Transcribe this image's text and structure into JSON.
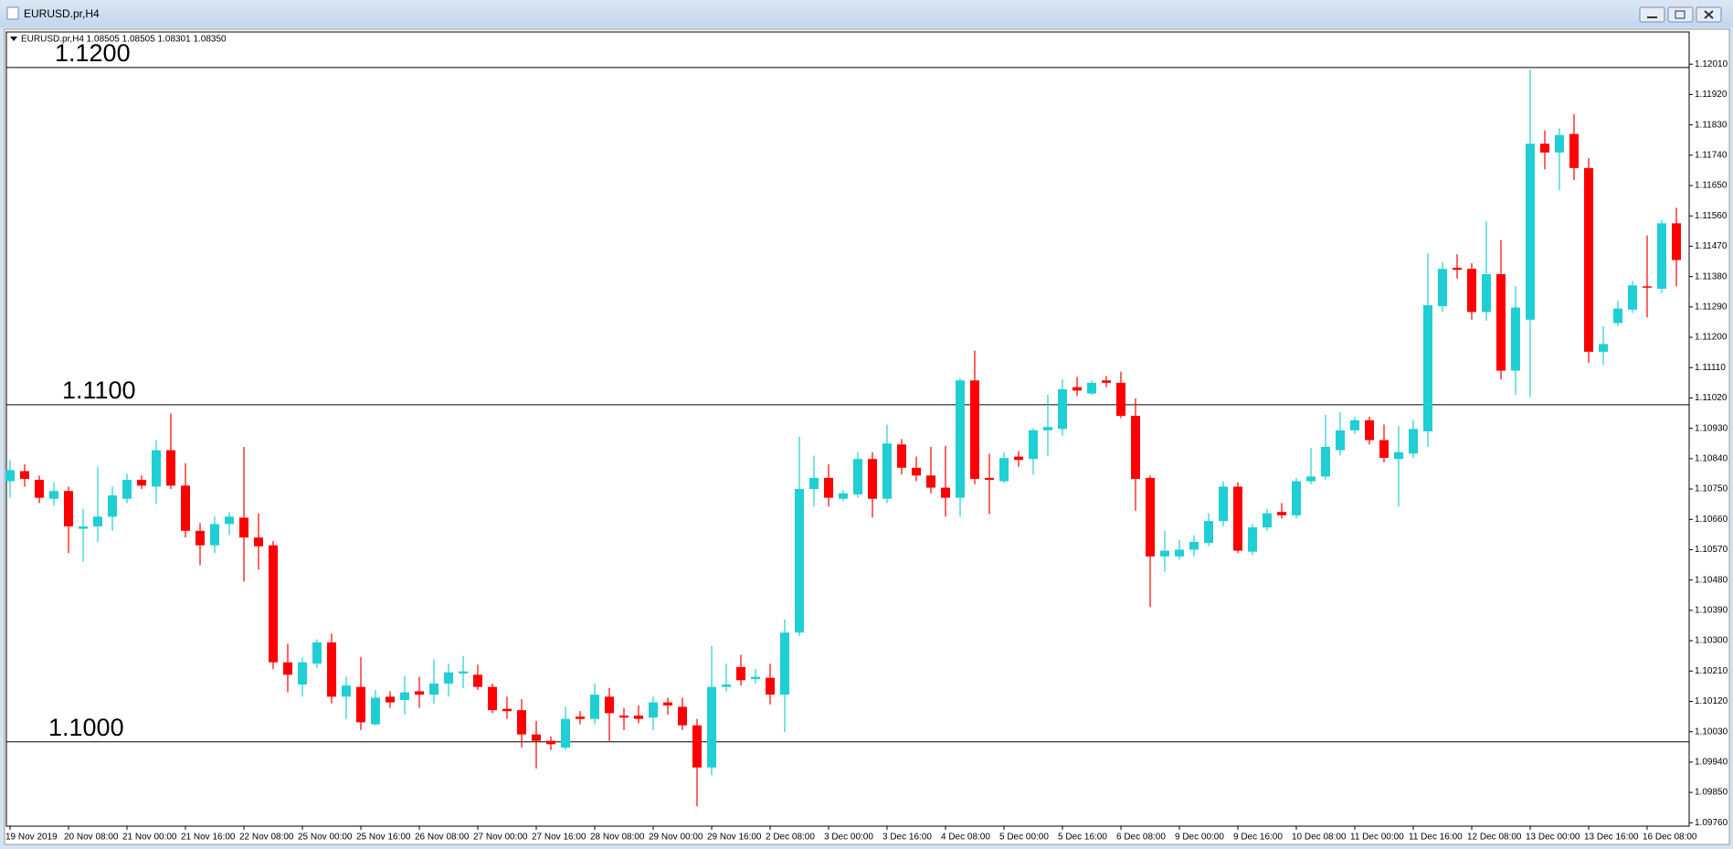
{
  "window": {
    "title": "EURUSD.pr,H4"
  },
  "chart_data": {
    "type": "candlestick",
    "header": "EURUSD.pr,H4  1.08505 1.08505 1.08301 1.08350",
    "up_color": "#1fcfd4",
    "down_color": "#ff0000",
    "categories": [
      "19 Nov 2019",
      null,
      null,
      null,
      "20 Nov 08:00",
      null,
      null,
      null,
      "21 Nov 00:00",
      null,
      null,
      null,
      "21 Nov 16:00",
      null,
      null,
      null,
      "22 Nov 08:00",
      null,
      null,
      null,
      "25 Nov 00:00",
      null,
      null,
      null,
      "25 Nov 16:00",
      null,
      null,
      null,
      "26 Nov 08:00",
      null,
      null,
      null,
      "27 Nov 00:00",
      null,
      null,
      null,
      "27 Nov 16:00",
      null,
      null,
      null,
      "28 Nov 08:00",
      null,
      null,
      null,
      "29 Nov 00:00",
      null,
      null,
      null,
      "29 Nov 16:00",
      null,
      null,
      null,
      "2 Dec 08:00",
      null,
      null,
      null,
      "3 Dec 00:00",
      null,
      null,
      null,
      "3 Dec 16:00",
      null,
      null,
      null,
      "4 Dec 08:00",
      null,
      null,
      null,
      "5 Dec 00:00",
      null,
      null,
      null,
      "5 Dec 16:00",
      null,
      null,
      null,
      "6 Dec 08:00",
      null,
      null,
      null,
      "9 Dec 00:00",
      null,
      null,
      null,
      "9 Dec 16:00",
      null,
      null,
      null,
      "10 Dec 08:00",
      null,
      null,
      null,
      "11 Dec 00:00",
      null,
      null,
      null,
      "11 Dec 16:00",
      null,
      null,
      null,
      "12 Dec 08:00",
      null,
      null,
      null,
      "13 Dec 00:00",
      null,
      null,
      null,
      "13 Dec 16:00",
      null,
      null,
      null,
      "16 Dec 08:00",
      null,
      null
    ],
    "open": [
      1.10773,
      1.10803,
      1.10777,
      1.10721,
      1.10744,
      1.10632,
      1.10639,
      1.10668,
      1.10721,
      1.10777,
      1.10757,
      1.10865,
      1.1076,
      1.10626,
      1.10583,
      1.10646,
      1.10665,
      1.10606,
      1.10583,
      1.10236,
      1.1017,
      1.10232,
      1.10295,
      1.10134,
      1.10163,
      1.10052,
      1.10134,
      1.10124,
      1.1015,
      1.1014,
      1.10173,
      1.10203,
      1.10199,
      1.10163,
      1.10098,
      1.10094,
      1.10022,
      1.10003,
      1.09983,
      1.10075,
      1.10068,
      1.10134,
      1.10078,
      1.10078,
      1.10072,
      1.10117,
      1.10104,
      1.10049,
      1.09924,
      1.10163,
      1.10222,
      1.10186,
      1.1019,
      1.1014,
      1.10324,
      1.1075,
      1.10783,
      1.10721,
      1.10734,
      1.10839,
      1.10721,
      1.10882,
      1.10813,
      1.1079,
      1.10754,
      1.10724,
      1.11072,
      1.10783,
      1.10773,
      1.10846,
      1.10839,
      1.10924,
      1.10928,
      1.11052,
      1.11033,
      1.11072,
      1.11065,
      1.10967,
      1.10783,
      1.1055,
      1.1055,
      1.1057,
      1.1059,
      1.10655,
      1.10757,
      1.10564,
      1.10636,
      1.10682,
      1.10672,
      1.10773,
      1.10787,
      1.10865,
      1.10924,
      1.10954,
      1.10895,
      1.10839,
      1.10855,
      1.10921,
      1.11292,
      1.11406,
      1.11403,
      1.11275,
      1.11387,
      1.11101,
      1.11252,
      1.11774,
      1.11748,
      1.11803,
      1.11702,
      1.11157,
      1.11242,
      1.11282,
      1.11351,
      1.11344,
      1.11538
    ],
    "high": [
      1.10836,
      1.10823,
      1.1079,
      1.1077,
      1.10757,
      1.10691,
      1.10816,
      1.10757,
      1.10796,
      1.1079,
      1.10895,
      1.10974,
      1.10826,
      1.10649,
      1.10668,
      1.10682,
      1.10875,
      1.10678,
      1.10596,
      1.10291,
      1.10252,
      1.10304,
      1.10321,
      1.10193,
      1.10252,
      1.10154,
      1.1015,
      1.10196,
      1.10193,
      1.10245,
      1.10232,
      1.10255,
      1.10229,
      1.10173,
      1.10134,
      1.10127,
      1.10062,
      1.10016,
      1.10104,
      1.10091,
      1.10173,
      1.1016,
      1.10101,
      1.10108,
      1.10134,
      1.10131,
      1.10131,
      1.10068,
      1.10285,
      1.10232,
      1.10258,
      1.10216,
      1.10232,
      1.10363,
      1.10905,
      1.10849,
      1.10823,
      1.10747,
      1.10859,
      1.10859,
      1.10941,
      1.10898,
      1.10846,
      1.10875,
      1.10878,
      1.11078,
      1.1116,
      1.10855,
      1.10859,
      1.10862,
      1.10931,
      1.11029,
      1.11075,
      1.11082,
      1.11072,
      1.11085,
      1.11098,
      1.11019,
      1.1079,
      1.10626,
      1.106,
      1.10613,
      1.10678,
      1.10773,
      1.1077,
      1.10646,
      1.10691,
      1.10708,
      1.10783,
      1.10872,
      1.1097,
      1.10977,
      1.10964,
      1.10964,
      1.10941,
      1.10937,
      1.10954,
      1.11449,
      1.11423,
      1.11446,
      1.1142,
      1.11544,
      1.11488,
      1.11351,
      1.11994,
      1.11813,
      1.1182,
      1.11862,
      1.11731,
      1.11233,
      1.11308,
      1.11367,
      1.11502,
      1.11548,
      1.11584
    ],
    "low": [
      1.10724,
      1.10757,
      1.10708,
      1.10701,
      1.1056,
      1.10534,
      1.10593,
      1.10626,
      1.10708,
      1.1075,
      1.10705,
      1.1075,
      1.10606,
      1.10524,
      1.1056,
      1.10613,
      1.10475,
      1.10511,
      1.10216,
      1.10147,
      1.10134,
      1.10219,
      1.10114,
      1.10068,
      1.10035,
      1.10049,
      1.10101,
      1.10081,
      1.10101,
      1.10114,
      1.10134,
      1.1016,
      1.10154,
      1.10085,
      1.10068,
      1.09983,
      1.09921,
      1.09976,
      1.09976,
      1.10052,
      1.10052,
      1.10003,
      1.10035,
      1.10055,
      1.10035,
      1.10081,
      1.10035,
      1.09809,
      1.09901,
      1.1015,
      1.10167,
      1.10173,
      1.10111,
      1.10029,
      1.10314,
      1.10698,
      1.10698,
      1.10714,
      1.10724,
      1.10665,
      1.10708,
      1.10793,
      1.10773,
      1.10737,
      1.10668,
      1.10668,
      1.10764,
      1.10675,
      1.10767,
      1.10816,
      1.10793,
      1.10849,
      1.10908,
      1.11026,
      1.11029,
      1.11052,
      1.1096,
      1.10685,
      1.104,
      1.10504,
      1.10541,
      1.1055,
      1.1058,
      1.10639,
      1.1056,
      1.10554,
      1.10626,
      1.10662,
      1.10662,
      1.10764,
      1.10777,
      1.10849,
      1.10914,
      1.10882,
      1.10829,
      1.10698,
      1.10842,
      1.10875,
      1.11275,
      1.11374,
      1.11252,
      1.11249,
      1.11075,
      1.11029,
      1.11023,
      1.11698,
      1.11636,
      1.11666,
      1.11124,
      1.11118,
      1.11233,
      1.11272,
      1.11259,
      1.11331,
      1.11351
    ],
    "close": [
      1.10806,
      1.1078,
      1.10724,
      1.10744,
      1.10639,
      1.10639,
      1.10668,
      1.10731,
      1.10777,
      1.1076,
      1.10865,
      1.1076,
      1.10626,
      1.10583,
      1.10646,
      1.10668,
      1.10606,
      1.1058,
      1.10236,
      1.10199,
      1.10236,
      1.10295,
      1.10134,
      1.10167,
      1.10058,
      1.10131,
      1.10117,
      1.10147,
      1.1014,
      1.10173,
      1.10206,
      1.10209,
      1.10163,
      1.10094,
      1.10091,
      1.10022,
      1.10003,
      1.09993,
      1.10068,
      1.10068,
      1.1014,
      1.10085,
      1.10072,
      1.10068,
      1.10117,
      1.10108,
      1.10049,
      1.09924,
      1.10163,
      1.1017,
      1.10183,
      1.10193,
      1.1014,
      1.10324,
      1.1075,
      1.10783,
      1.10724,
      1.10737,
      1.10839,
      1.10721,
      1.10885,
      1.10813,
      1.1079,
      1.10754,
      1.10724,
      1.11072,
      1.1078,
      1.10777,
      1.10842,
      1.10836,
      1.10924,
      1.10934,
      1.11046,
      1.11042,
      1.11065,
      1.11065,
      1.10967,
      1.1078,
      1.1055,
      1.10567,
      1.1057,
      1.10593,
      1.10655,
      1.10757,
      1.10567,
      1.10636,
      1.10678,
      1.10672,
      1.10773,
      1.10787,
      1.10875,
      1.10924,
      1.10954,
      1.10895,
      1.10842,
      1.10859,
      1.10928,
      1.11295,
      1.11403,
      1.114,
      1.11275,
      1.11387,
      1.11101,
      1.11288,
      1.11774,
      1.11748,
      1.118,
      1.11702,
      1.11157,
      1.1118,
      1.11285,
      1.11354,
      1.11347,
      1.11538,
      1.11429
    ],
    "hlines": [
      {
        "value": 1.12,
        "label": "1.1200"
      },
      {
        "value": 1.11,
        "label": "1.1100"
      },
      {
        "value": 1.1,
        "label": "1.1000"
      }
    ],
    "ylim": [
      1.0975,
      1.121
    ],
    "yticks": [
      {
        "value": 1.1201,
        "label": "1.12010"
      },
      {
        "value": 1.1192,
        "label": "1.11920"
      },
      {
        "value": 1.1183,
        "label": "1.11830"
      },
      {
        "value": 1.1174,
        "label": "1.11740"
      },
      {
        "value": 1.1165,
        "label": "1.11650"
      },
      {
        "value": 1.1156,
        "label": "1.11560"
      },
      {
        "value": 1.1147,
        "label": "1.11470"
      },
      {
        "value": 1.1138,
        "label": "1.11380"
      },
      {
        "value": 1.1129,
        "label": "1.11290"
      },
      {
        "value": 1.112,
        "label": "1.11200"
      },
      {
        "value": 1.1111,
        "label": "1.11110"
      },
      {
        "value": 1.1102,
        "label": "1.11020"
      },
      {
        "value": 1.1093,
        "label": "1.10930"
      },
      {
        "value": 1.1084,
        "label": "1.10840"
      },
      {
        "value": 1.1075,
        "label": "1.10750"
      },
      {
        "value": 1.1066,
        "label": "1.10660"
      },
      {
        "value": 1.1057,
        "label": "1.10570"
      },
      {
        "value": 1.1048,
        "label": "1.10480"
      },
      {
        "value": 1.1039,
        "label": "1.10390"
      },
      {
        "value": 1.103,
        "label": "1.10300"
      },
      {
        "value": 1.1021,
        "label": "1.10210"
      },
      {
        "value": 1.1012,
        "label": "1.10120"
      },
      {
        "value": 1.1003,
        "label": "1.10030"
      },
      {
        "value": 1.0994,
        "label": "1.09940"
      },
      {
        "value": 1.0985,
        "label": "1.09850"
      },
      {
        "value": 1.0976,
        "label": "1.09760"
      }
    ]
  }
}
